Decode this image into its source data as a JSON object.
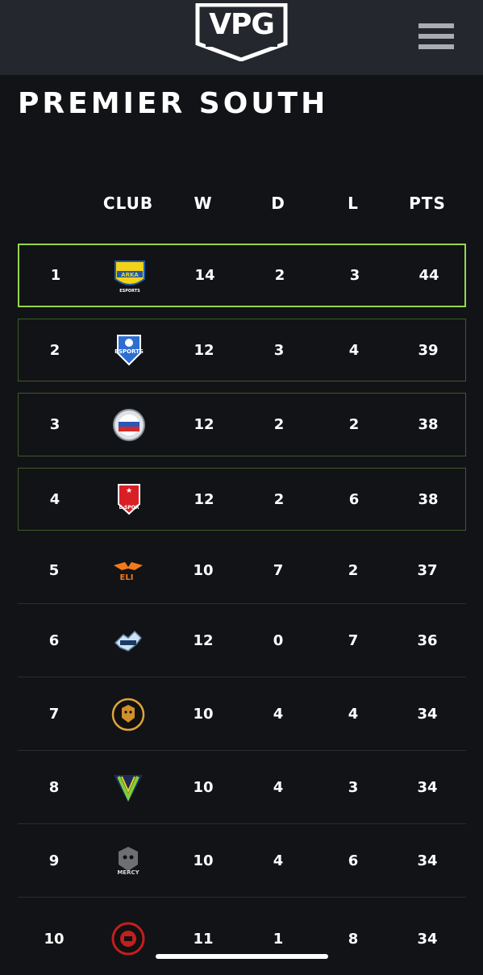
{
  "header": {
    "logo_text": "VPG"
  },
  "page": {
    "title": "PREMIER SOUTH"
  },
  "table": {
    "columns": {
      "club": "CLUB",
      "w": "W",
      "d": "D",
      "l": "L",
      "pts": "PTS"
    },
    "rows": [
      {
        "pos": "1",
        "club_icon": "arka-esports-badge",
        "w": "14",
        "d": "2",
        "l": "3",
        "pts": "44",
        "badge_text": "ARKA",
        "badge_sub": "ESPORTS"
      },
      {
        "pos": "2",
        "club_icon": "esports-shield-badge",
        "w": "12",
        "d": "3",
        "l": "4",
        "pts": "39",
        "badge_text": "ESPORTS"
      },
      {
        "pos": "3",
        "club_icon": "round-flag-badge",
        "w": "12",
        "d": "2",
        "l": "2",
        "pts": "38"
      },
      {
        "pos": "4",
        "club_icon": "star-shield-badge",
        "w": "12",
        "d": "2",
        "l": "6",
        "pts": "38",
        "badge_text": "E-SPOR"
      },
      {
        "pos": "5",
        "club_icon": "eli-wings-badge",
        "w": "10",
        "d": "7",
        "l": "2",
        "pts": "37",
        "badge_text": "ELI"
      },
      {
        "pos": "6",
        "club_icon": "eagle-badge",
        "w": "12",
        "d": "0",
        "l": "7",
        "pts": "36"
      },
      {
        "pos": "7",
        "club_icon": "tiger-round-badge",
        "w": "10",
        "d": "4",
        "l": "4",
        "pts": "34"
      },
      {
        "pos": "8",
        "club_icon": "v-triangle-badge",
        "w": "10",
        "d": "4",
        "l": "3",
        "pts": "34"
      },
      {
        "pos": "9",
        "club_icon": "mercy-skull-badge",
        "w": "10",
        "d": "4",
        "l": "6",
        "pts": "34",
        "badge_text": "MERCY"
      },
      {
        "pos": "10",
        "club_icon": "red-round-badge",
        "w": "11",
        "d": "1",
        "l": "8",
        "pts": "34"
      }
    ]
  },
  "colors": {
    "background": "#121317",
    "topbar": "#24272d",
    "highlight_first": "#95d84a",
    "highlight_border": "#3e5c25"
  }
}
